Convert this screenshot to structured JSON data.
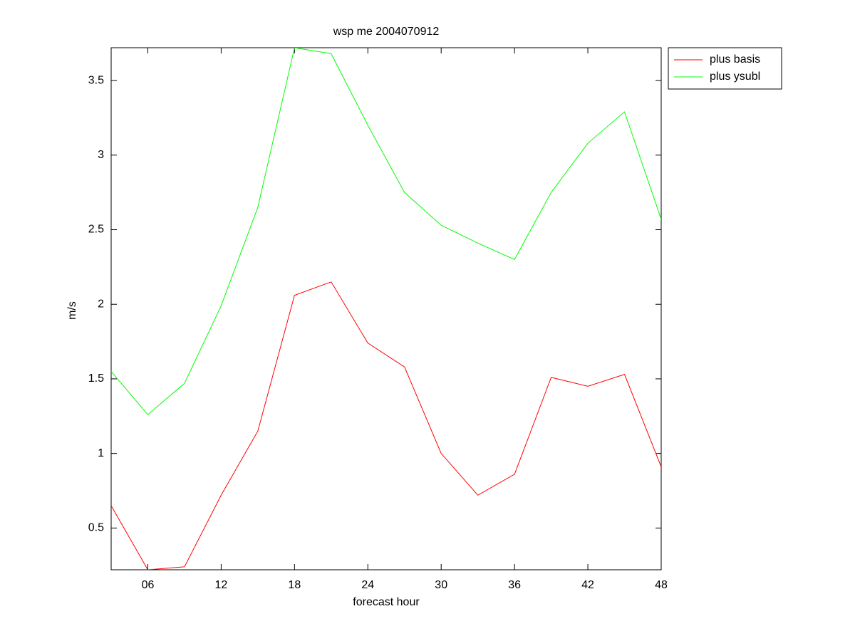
{
  "chart_data": {
    "type": "line",
    "title": "wsp me 2004070912",
    "x_label": "forecast hour",
    "y_label": "m/s",
    "x": [
      3,
      6,
      9,
      12,
      15,
      18,
      21,
      24,
      27,
      30,
      33,
      36,
      39,
      42,
      45,
      48
    ],
    "series": [
      {
        "name": "plus basis",
        "color": "#ff0000",
        "values": [
          0.65,
          0.22,
          0.24,
          0.72,
          1.15,
          2.06,
          2.15,
          1.74,
          1.58,
          1.0,
          0.72,
          0.86,
          1.51,
          1.45,
          1.53,
          0.91
        ]
      },
      {
        "name": "plus ysubl",
        "color": "#00ff00",
        "values": [
          1.55,
          1.26,
          1.47,
          1.99,
          2.65,
          3.72,
          3.68,
          3.2,
          2.75,
          2.53,
          2.41,
          2.3,
          2.75,
          3.08,
          3.29,
          2.57
        ]
      }
    ],
    "xlim": [
      3,
      48
    ],
    "xticks": [
      {
        "value": 6,
        "label": "06"
      },
      12,
      18,
      24,
      30,
      36,
      42,
      48
    ],
    "ylim": [
      0.22,
      3.72
    ],
    "yticks": [
      0.5,
      1,
      1.5,
      2,
      2.5,
      3,
      3.5
    ],
    "grid": false,
    "legend": "outside-upper-right"
  }
}
